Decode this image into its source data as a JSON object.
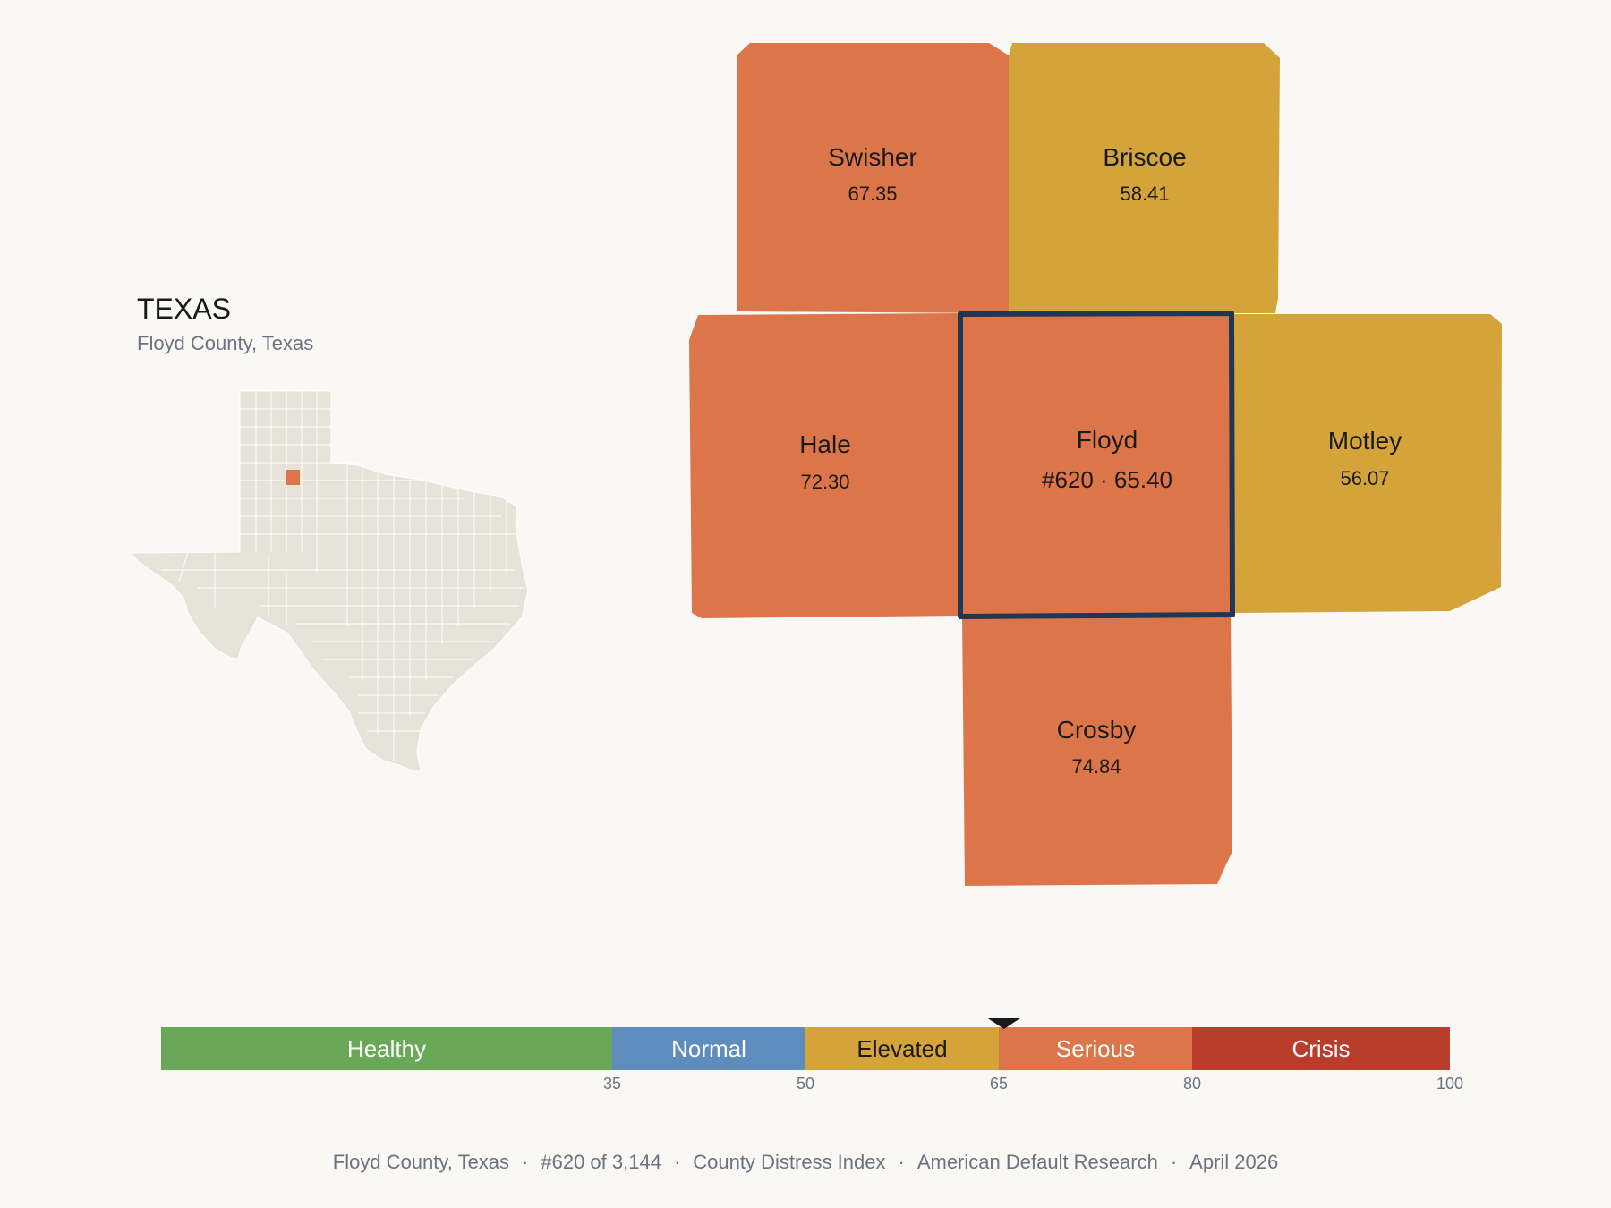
{
  "header": {
    "state": "TEXAS",
    "subtitle": "Floyd County, Texas"
  },
  "inset": {
    "highlighted_county": "Floyd",
    "base_color": "#e8e3d9",
    "highlight_color": "#dc764a"
  },
  "counties": {
    "swisher": {
      "name": "Swisher",
      "value": "67.35",
      "color": "#dc764a"
    },
    "briscoe": {
      "name": "Briscoe",
      "value": "58.41",
      "color": "#d4a43a"
    },
    "hale": {
      "name": "Hale",
      "value": "72.30",
      "color": "#dc764a"
    },
    "floyd": {
      "name": "Floyd",
      "value": "#620 · 65.40",
      "color": "#dc764a",
      "outline": "#1f3655"
    },
    "motley": {
      "name": "Motley",
      "value": "56.07",
      "color": "#d4a43a"
    },
    "crosby": {
      "name": "Crosby",
      "value": "74.84",
      "color": "#dc764a"
    }
  },
  "scale": {
    "min": 0,
    "max": 100,
    "marker_value": 65.4,
    "segments": [
      {
        "label": "Healthy",
        "from": 0,
        "to": 35,
        "color": "#68a857",
        "text_color": "#ffffff"
      },
      {
        "label": "Normal",
        "from": 35,
        "to": 50,
        "color": "#5e8cbc",
        "text_color": "#ffffff"
      },
      {
        "label": "Elevated",
        "from": 50,
        "to": 65,
        "color": "#d4a43a",
        "text_color": "#1a1a1a"
      },
      {
        "label": "Serious",
        "from": 65,
        "to": 80,
        "color": "#dc764a",
        "text_color": "#ffffff"
      },
      {
        "label": "Crisis",
        "from": 80,
        "to": 100,
        "color": "#b83d2b",
        "text_color": "#ffffff"
      }
    ],
    "ticks": [
      "35",
      "50",
      "65",
      "80",
      "100"
    ]
  },
  "footer": {
    "county": "Floyd County, Texas",
    "rank": "#620 of 3,144",
    "index": "County Distress Index",
    "source": "American Default Research",
    "date": "April 2026"
  }
}
